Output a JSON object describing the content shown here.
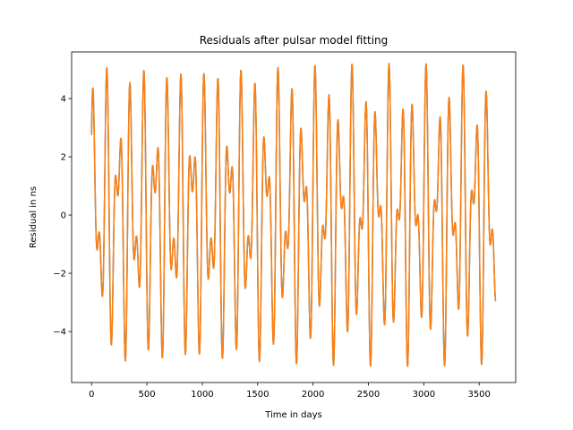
{
  "chart_data": {
    "type": "line",
    "title": "Residuals after pulsar model fitting",
    "xlabel": "Time in days",
    "ylabel": "Residual in ns",
    "xlim": [
      -180,
      3830
    ],
    "ylim": [
      -5.75,
      5.6
    ],
    "xticks": [
      0,
      500,
      1000,
      1500,
      2000,
      2500,
      3000,
      3500
    ],
    "yticks": [
      -4,
      -2,
      0,
      2,
      4
    ],
    "grid": false,
    "legend": "none",
    "series": [
      {
        "color": "#1f77b4",
        "generator": {
          "x_start": 0,
          "x_end": 3650,
          "n_points": 1826,
          "components": [
            {
              "amplitude": 3.0,
              "period_days": 111.0,
              "phase_rad": 0.3
            },
            {
              "amplitude": 2.2,
              "period_days": 67.0,
              "phase_rad": 1.0
            }
          ]
        }
      },
      {
        "color": "#ff7f0e",
        "generator": {
          "x_start": 0,
          "x_end": 3650,
          "n_points": 1826,
          "components": [
            {
              "amplitude": 3.0,
              "period_days": 111.0,
              "phase_rad": 0.3
            },
            {
              "amplitude": 2.2,
              "period_days": 67.0,
              "phase_rad": 1.0
            }
          ]
        }
      }
    ]
  }
}
